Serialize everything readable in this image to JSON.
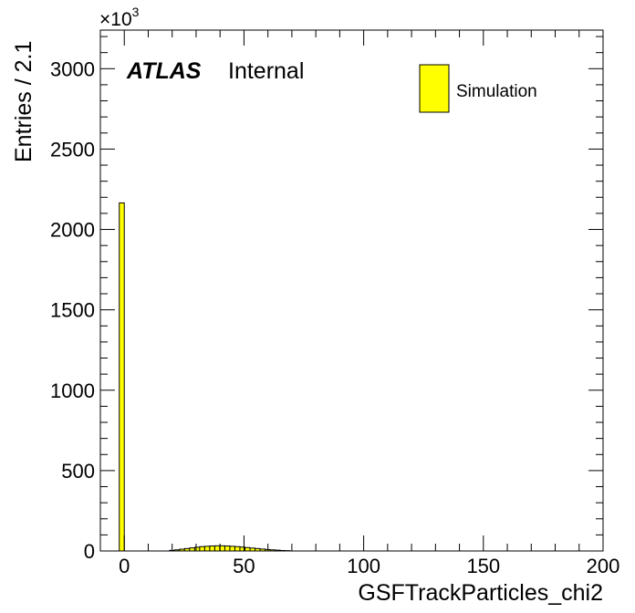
{
  "chart_data": {
    "type": "bar",
    "xlabel": "GSFTrackParticles_chi2",
    "ylabel": "Entries / 2.1",
    "y_multiplier_label": "×10",
    "y_multiplier_exponent": "3",
    "xlim": [
      -10,
      200
    ],
    "ylim": [
      0,
      3240
    ],
    "x_ticks": [
      0,
      50,
      100,
      150,
      200
    ],
    "x_tick_labels": [
      "0",
      "50",
      "100",
      "150",
      "200"
    ],
    "y_ticks": [
      0,
      500,
      1000,
      1500,
      2000,
      2500,
      3000
    ],
    "y_tick_labels": [
      "0",
      "500",
      "1000",
      "1500",
      "2000",
      "2500",
      "3000"
    ],
    "bin_width": 2.1,
    "grid": false,
    "legend_position": "top-right",
    "series": [
      {
        "name": "Simulation",
        "color": "#ffff00",
        "bins": [
          {
            "x": -1.05,
            "y": 2165
          },
          {
            "x": 19.95,
            "y": 4
          },
          {
            "x": 22.05,
            "y": 7
          },
          {
            "x": 24.15,
            "y": 11
          },
          {
            "x": 26.25,
            "y": 15
          },
          {
            "x": 28.35,
            "y": 19
          },
          {
            "x": 30.45,
            "y": 23
          },
          {
            "x": 32.55,
            "y": 27
          },
          {
            "x": 34.65,
            "y": 29
          },
          {
            "x": 36.75,
            "y": 31
          },
          {
            "x": 38.85,
            "y": 32
          },
          {
            "x": 40.95,
            "y": 32
          },
          {
            "x": 43.05,
            "y": 31
          },
          {
            "x": 45.15,
            "y": 29
          },
          {
            "x": 47.25,
            "y": 27
          },
          {
            "x": 49.35,
            "y": 24
          },
          {
            "x": 51.45,
            "y": 21
          },
          {
            "x": 53.55,
            "y": 18
          },
          {
            "x": 55.65,
            "y": 15
          },
          {
            "x": 57.75,
            "y": 12
          },
          {
            "x": 59.85,
            "y": 9
          },
          {
            "x": 61.95,
            "y": 7
          },
          {
            "x": 64.05,
            "y": 5
          },
          {
            "x": 66.15,
            "y": 3
          },
          {
            "x": 68.25,
            "y": 2
          }
        ]
      }
    ],
    "annotations": {
      "atlas": "ATLAS",
      "internal": "Internal"
    }
  }
}
